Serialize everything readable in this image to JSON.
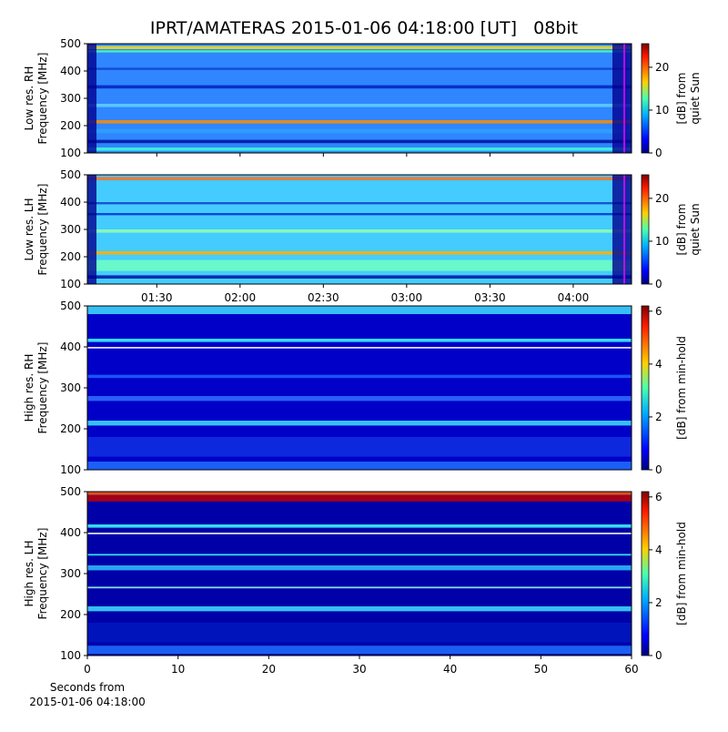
{
  "chart_data": [
    {
      "type": "heatmap",
      "title": "IPRT/AMATERAS 2015-01-06 04:18:00 [UT]   08bit",
      "ylabel": [
        "Low res. RH",
        "Frequency [MHz]"
      ],
      "ylim": [
        100,
        500
      ],
      "yticks": [
        100,
        200,
        300,
        400,
        500
      ],
      "xlim": [
        65,
        261
      ],
      "xticks": [
        90,
        120,
        150,
        180,
        210,
        240
      ],
      "show_xtick_labels": false,
      "colorbar": {
        "label": [
          "[dB] from",
          "quiet Sun"
        ],
        "lim": [
          0,
          25.5
        ],
        "ticks": [
          0,
          10,
          20
        ]
      }
    },
    {
      "type": "heatmap",
      "ylabel": [
        "Low res. LH",
        "Frequency [MHz]"
      ],
      "ylim": [
        100,
        500
      ],
      "yticks": [
        100,
        200,
        300,
        400,
        500
      ],
      "xlim": [
        65,
        261
      ],
      "xticks": [
        {
          "value": 90,
          "label": "01:30"
        },
        {
          "value": 120,
          "label": "02:00"
        },
        {
          "value": 150,
          "label": "02:30"
        },
        {
          "value": 180,
          "label": "03:00"
        },
        {
          "value": 210,
          "label": "03:30"
        },
        {
          "value": 240,
          "label": "04:00"
        }
      ],
      "colorbar": {
        "label": [
          "[dB] from",
          "quiet Sun"
        ],
        "lim": [
          0,
          25.5
        ],
        "ticks": [
          0,
          10,
          20
        ]
      }
    },
    {
      "type": "heatmap",
      "ylabel": [
        "High res. RH",
        "Frequency [MHz]"
      ],
      "ylim": [
        100,
        500
      ],
      "yticks": [
        100,
        200,
        300,
        400,
        500
      ],
      "xlim": [
        0,
        60
      ],
      "colorbar": {
        "label": [
          "[dB] from min-hold"
        ],
        "lim": [
          0,
          6.2
        ],
        "ticks": [
          0,
          2,
          4,
          6
        ]
      }
    },
    {
      "type": "heatmap",
      "ylabel": [
        "High res. LH",
        "Frequency [MHz]"
      ],
      "ylim": [
        100,
        500
      ],
      "yticks": [
        100,
        200,
        300,
        400,
        500
      ],
      "xlim": [
        0,
        60
      ],
      "xticks": [
        0,
        10,
        20,
        30,
        40,
        50,
        60
      ],
      "xlabel": [
        "Seconds from",
        "2015-01-06 04:18:00"
      ],
      "colorbar": {
        "label": [
          "[dB] from min-hold"
        ],
        "lim": [
          0,
          6.2
        ],
        "ticks": [
          0,
          2,
          4,
          6
        ]
      }
    }
  ]
}
